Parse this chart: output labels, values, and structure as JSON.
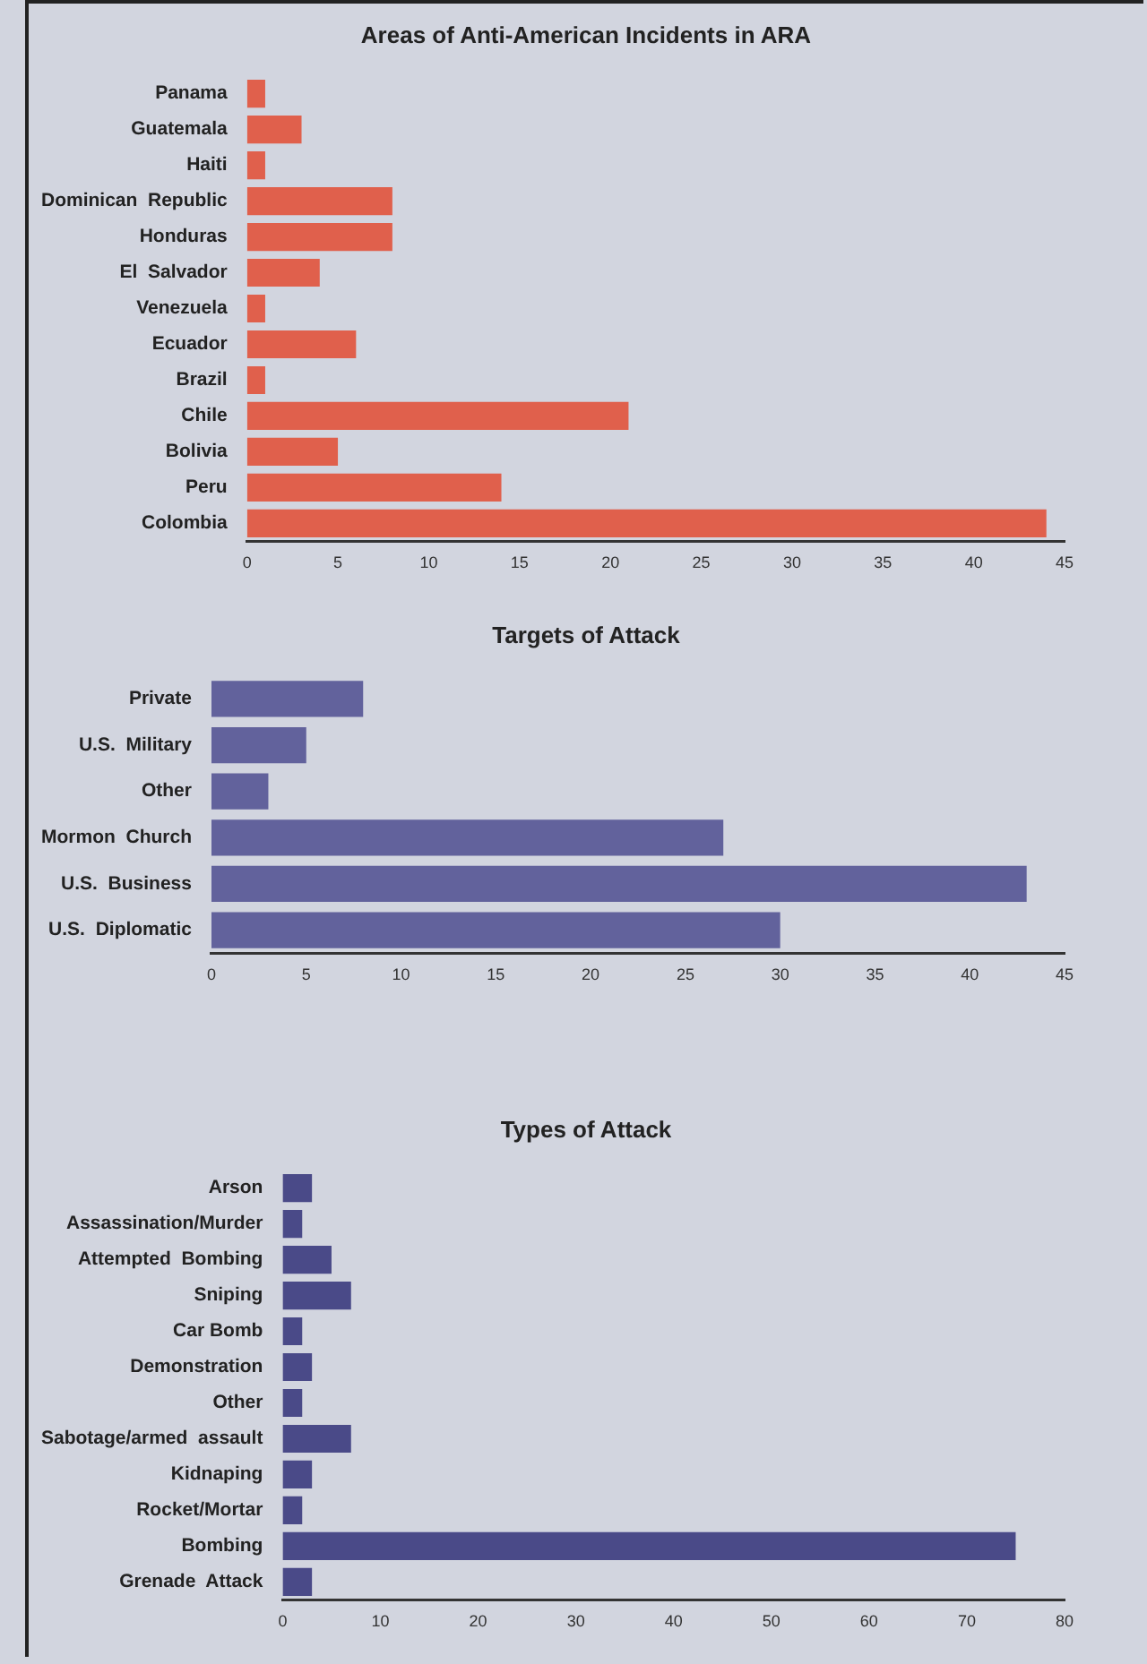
{
  "chart_data": [
    {
      "type": "bar",
      "orientation": "horizontal",
      "title": "Areas of Anti-American Incidents in ARA",
      "categories": [
        "Panama",
        "Guatemala",
        "Haiti",
        "Dominican  Republic",
        "Honduras",
        "El  Salvador",
        "Venezuela",
        "Ecuador",
        "Brazil",
        "Chile",
        "Bolivia",
        "Peru",
        "Colombia"
      ],
      "values": [
        1,
        3,
        1,
        8,
        8,
        4,
        1,
        6,
        1,
        21,
        5,
        14,
        44
      ],
      "color": "#e0604c",
      "xlim": [
        0,
        45
      ],
      "xticks": [
        0,
        5,
        10,
        15,
        20,
        25,
        30,
        35,
        40,
        45
      ],
      "grid": false,
      "legend": false
    },
    {
      "type": "bar",
      "orientation": "horizontal",
      "title": "Targets of Attack",
      "categories": [
        "Private",
        "U.S.  Military",
        "Other",
        "Mormon  Church",
        "U.S.  Business",
        "U.S.  Diplomatic"
      ],
      "values": [
        8,
        5,
        3,
        27,
        43,
        30
      ],
      "color": "#62629c",
      "xlim": [
        0,
        45
      ],
      "xticks": [
        0,
        5,
        10,
        15,
        20,
        25,
        30,
        35,
        40,
        45
      ],
      "grid": false,
      "legend": false
    },
    {
      "type": "bar",
      "orientation": "horizontal",
      "title": "Types of Attack",
      "categories": [
        "Arson",
        "Assassination/Murder",
        "Attempted  Bombing",
        "Sniping",
        "Car Bomb",
        "Demonstration",
        "Other",
        "Sabotage/armed  assault",
        "Kidnaping",
        "Rocket/Mortar",
        "Bombing",
        "Grenade  Attack"
      ],
      "values": [
        3,
        2,
        5,
        7,
        2,
        3,
        2,
        7,
        3,
        2,
        75,
        3
      ],
      "color": "#4a4a88",
      "xlim": [
        0,
        80
      ],
      "xticks": [
        0,
        10,
        20,
        30,
        40,
        50,
        60,
        70,
        80
      ],
      "grid": false,
      "legend": false
    }
  ]
}
